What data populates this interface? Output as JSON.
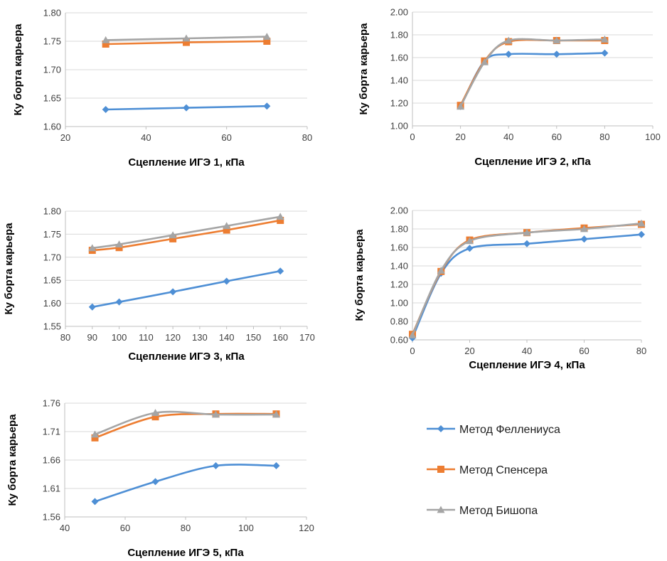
{
  "chart_data": [
    {
      "type": "line",
      "xlabel": "Сцепление ИГЭ 1, кПа",
      "ylabel": "Ку борта карьера",
      "xlim": [
        20,
        80
      ],
      "xticks": [
        20,
        40,
        60,
        80
      ],
      "ylim": [
        1.6,
        1.8
      ],
      "yticks": [
        "1.60",
        "1.65",
        "1.70",
        "1.75",
        "1.80"
      ],
      "series": [
        {
          "name": "Метод Феллениуса",
          "x": [
            30,
            50,
            70
          ],
          "y": [
            1.63,
            1.633,
            1.636
          ]
        },
        {
          "name": "Метод Спенсера",
          "x": [
            30,
            50,
            70
          ],
          "y": [
            1.745,
            1.748,
            1.75
          ]
        },
        {
          "name": "Метод Бишопа",
          "x": [
            30,
            50,
            70
          ],
          "y": [
            1.752,
            1.755,
            1.758
          ]
        }
      ]
    },
    {
      "type": "line",
      "xlabel": "Сцепление ИГЭ 2, кПа",
      "ylabel": "Ку борта карьера",
      "xlim": [
        0,
        100
      ],
      "xticks": [
        0,
        20,
        40,
        60,
        80,
        100
      ],
      "ylim": [
        1.0,
        2.0
      ],
      "yticks": [
        "1.00",
        "1.20",
        "1.40",
        "1.60",
        "1.80",
        "2.00"
      ],
      "series": [
        {
          "name": "Метод Феллениуса",
          "x": [
            20,
            30,
            40,
            60,
            80
          ],
          "y": [
            1.17,
            1.57,
            1.63,
            1.63,
            1.64
          ]
        },
        {
          "name": "Метод Спенсера",
          "x": [
            20,
            30,
            40,
            60,
            80
          ],
          "y": [
            1.18,
            1.57,
            1.74,
            1.75,
            1.75
          ]
        },
        {
          "name": "Метод Бишопа",
          "x": [
            20,
            30,
            40,
            60,
            80
          ],
          "y": [
            1.17,
            1.56,
            1.75,
            1.75,
            1.76
          ]
        }
      ]
    },
    {
      "type": "line",
      "xlabel": "Сцепление ИГЭ 3, кПа",
      "ylabel": "Ку борта карьера",
      "xlim": [
        80,
        170
      ],
      "xticks": [
        80,
        90,
        100,
        110,
        120,
        130,
        140,
        150,
        160,
        170
      ],
      "ylim": [
        1.55,
        1.8
      ],
      "yticks": [
        "1.55",
        "1.60",
        "1.65",
        "1.70",
        "1.75",
        "1.80"
      ],
      "series": [
        {
          "name": "Метод Феллениуса",
          "x": [
            90,
            100,
            120,
            140,
            160
          ],
          "y": [
            1.592,
            1.603,
            1.625,
            1.648,
            1.67
          ]
        },
        {
          "name": "Метод Спенсера",
          "x": [
            90,
            100,
            120,
            140,
            160
          ],
          "y": [
            1.715,
            1.721,
            1.74,
            1.759,
            1.78
          ]
        },
        {
          "name": "Метод Бишопа",
          "x": [
            90,
            100,
            120,
            140,
            160
          ],
          "y": [
            1.72,
            1.728,
            1.748,
            1.768,
            1.788
          ]
        }
      ]
    },
    {
      "type": "line",
      "xlabel": "Сцепление ИГЭ 4, кПа",
      "ylabel": "Ку борта карьера",
      "xlim": [
        0,
        80
      ],
      "xticks": [
        0,
        20,
        40,
        60,
        80
      ],
      "ylim": [
        0.6,
        2.0
      ],
      "yticks": [
        "0.60",
        "0.80",
        "1.00",
        "1.20",
        "1.40",
        "1.60",
        "1.80",
        "2.00"
      ],
      "series": [
        {
          "name": "Метод Феллениуса",
          "x": [
            0,
            10,
            20,
            40,
            60,
            80
          ],
          "y": [
            0.62,
            1.32,
            1.59,
            1.64,
            1.69,
            1.74
          ]
        },
        {
          "name": "Метод Спенсера",
          "x": [
            0,
            10,
            20,
            40,
            60,
            80
          ],
          "y": [
            0.66,
            1.34,
            1.68,
            1.76,
            1.81,
            1.85
          ]
        },
        {
          "name": "Метод Бишопа",
          "x": [
            0,
            10,
            20,
            40,
            60,
            80
          ],
          "y": [
            0.65,
            1.35,
            1.67,
            1.76,
            1.8,
            1.86
          ]
        }
      ]
    },
    {
      "type": "line",
      "xlabel": "Сцепление ИГЭ 5, кПа",
      "ylabel": "Ку борта карьера",
      "xlim": [
        40,
        120
      ],
      "xticks": [
        40,
        60,
        80,
        100,
        120
      ],
      "ylim": [
        1.56,
        1.76
      ],
      "yticks": [
        "1.56",
        "1.61",
        "1.66",
        "1.71",
        "1.76"
      ],
      "series": [
        {
          "name": "Метод Феллениуса",
          "x": [
            50,
            70,
            90,
            110
          ],
          "y": [
            1.587,
            1.622,
            1.65,
            1.65
          ]
        },
        {
          "name": "Метод Спенсера",
          "x": [
            50,
            70,
            90,
            110
          ],
          "y": [
            1.699,
            1.736,
            1.741,
            1.741
          ]
        },
        {
          "name": "Метод Бишопа",
          "x": [
            50,
            70,
            90,
            110
          ],
          "y": [
            1.705,
            1.743,
            1.74,
            1.74
          ]
        }
      ]
    }
  ],
  "legend": {
    "placement": "bottom-right",
    "items": [
      {
        "label": "Метод Феллениуса",
        "color": "#4e8fd5",
        "marker": "diamond"
      },
      {
        "label": "Метод Спенсера",
        "color": "#ed7d31",
        "marker": "square"
      },
      {
        "label": "Метод Бишопа",
        "color": "#a5a5a5",
        "marker": "triangle"
      }
    ]
  },
  "colors": {
    "gridline": "#d9d9d9",
    "axis": "#bfbfbf"
  }
}
